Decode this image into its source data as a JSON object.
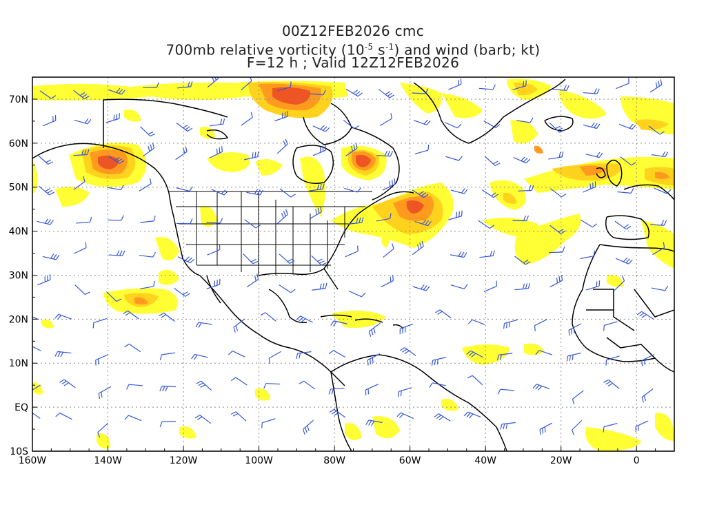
{
  "title": {
    "line1": "00Z12FEB2026 cmc",
    "line2_prefix": "700mb relative vorticity (10",
    "line2_exp1": "-5",
    "line2_mid": " s",
    "line2_exp2": "-1",
    "line2_suffix": ") and wind (barb; kt)",
    "line3": "F=12 h ; Valid 12Z12FEB2026"
  },
  "axes": {
    "lon_labels": [
      "160W",
      "140W",
      "120W",
      "100W",
      "80W",
      "60W",
      "40W",
      "20W",
      "0"
    ],
    "lat_labels": [
      "70N",
      "60N",
      "50N",
      "40N",
      "30N",
      "20N",
      "10N",
      "EQ",
      "10S"
    ],
    "lon_range": [
      -160,
      10
    ],
    "lat_range": [
      -10,
      75
    ]
  },
  "colors": {
    "vort_low": "#ffff33",
    "vort_mid": "#ffd21e",
    "vort_high": "#ff9a1e",
    "vort_max": "#ee5522",
    "barb": "#3355dd",
    "coast": "#000000",
    "grid": "#888888"
  }
}
